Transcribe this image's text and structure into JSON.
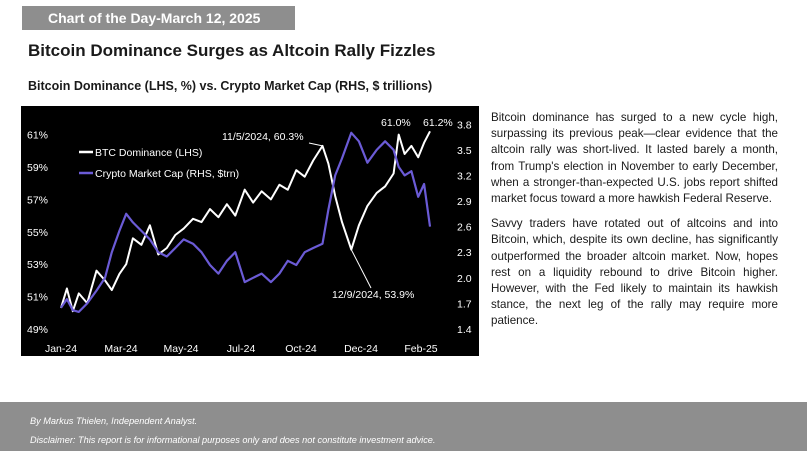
{
  "banner": "Chart of the Day-March 12, 2025",
  "headline": "Bitcoin Dominance Surges as Altcoin Rally Fizzles",
  "subhead": "Bitcoin Dominance (LHS, %) vs. Crypto Market Cap (RHS, $ trillions)",
  "paragraphs": [
    "Bitcoin dominance has surged to a new cycle high, surpassing its previous peak—clear evidence that the altcoin rally was short-lived. It lasted barely a month, from Trump's election in November to early December, when a stronger-than-expected U.S. jobs report shifted market focus toward a more hawkish Federal Reserve.",
    "Savvy traders have rotated out of altcoins and into Bitcoin, which, despite its own decline, has significantly outperformed the broader altcoin market. Now, hopes rest on a liquidity rebound to drive Bitcoin higher. However, with the Fed likely to maintain its hawkish stance, the next leg of the rally may require more patience."
  ],
  "footer": {
    "author": "By Markus Thielen, Independent Analyst.",
    "disclaimer": "Disclaimer: This report is for informational purposes only and does not constitute investment advice."
  },
  "chart_data": {
    "type": "line",
    "title": "Bitcoin Dominance (LHS, %) vs. Crypto Market Cap (RHS, $ trillions)",
    "x_tick_labels": [
      "Jan-24",
      "Mar-24",
      "May-24",
      "Jul-24",
      "Oct-24",
      "Dec-24",
      "Feb-25"
    ],
    "x_range": [
      "2024-01-01",
      "2025-03-12"
    ],
    "y_left": {
      "ticks": [
        "49%",
        "51%",
        "53%",
        "55%",
        "57%",
        "59%",
        "61%"
      ],
      "range": [
        49,
        61.9
      ]
    },
    "y_right": {
      "ticks": [
        "1.4",
        "1.7",
        "2.0",
        "2.3",
        "2.6",
        "2.9",
        "3.2",
        "3.5",
        "3.8"
      ],
      "range": [
        1.4,
        3.85
      ]
    },
    "legend": {
      "position": "top-left"
    },
    "grid": false,
    "colors": {
      "background": "#000000",
      "btc": "#ffffff",
      "mcap": "#6b5bd6",
      "axis_text": "#ffffff"
    },
    "series": [
      {
        "name": "BTC Dominance (LHS)",
        "axis": "left",
        "x": [
          "2024-01-01",
          "2024-01-08",
          "2024-01-15",
          "2024-01-22",
          "2024-02-01",
          "2024-02-12",
          "2024-02-22",
          "2024-03-01",
          "2024-03-10",
          "2024-03-18",
          "2024-03-26",
          "2024-04-05",
          "2024-04-15",
          "2024-04-25",
          "2024-05-05",
          "2024-05-15",
          "2024-05-25",
          "2024-06-05",
          "2024-06-15",
          "2024-06-25",
          "2024-07-05",
          "2024-07-15",
          "2024-07-25",
          "2024-08-05",
          "2024-08-15",
          "2024-08-25",
          "2024-09-05",
          "2024-09-15",
          "2024-09-25",
          "2024-10-05",
          "2024-10-15",
          "2024-10-25",
          "2024-11-05",
          "2024-11-12",
          "2024-11-20",
          "2024-11-28",
          "2024-12-09",
          "2024-12-18",
          "2024-12-28",
          "2025-01-08",
          "2025-01-18",
          "2025-01-28",
          "2025-02-03",
          "2025-02-10",
          "2025-02-18",
          "2025-02-26",
          "2025-03-05",
          "2025-03-12"
        ],
        "y": [
          50.3,
          51.5,
          50.1,
          51.2,
          50.6,
          52.6,
          52.0,
          51.4,
          52.4,
          53.0,
          54.6,
          54.2,
          55.4,
          53.6,
          54.0,
          54.8,
          55.2,
          55.8,
          55.6,
          56.4,
          55.9,
          56.7,
          56.0,
          57.6,
          56.8,
          57.5,
          57.0,
          57.9,
          57.6,
          58.8,
          58.4,
          59.4,
          60.3,
          59.2,
          57.2,
          55.6,
          53.9,
          55.4,
          56.6,
          57.4,
          57.8,
          58.6,
          61.0,
          59.8,
          60.3,
          59.6,
          60.5,
          61.2
        ]
      },
      {
        "name": "Crypto Market Cap (RHS, $trn)",
        "axis": "right",
        "x": [
          "2024-01-01",
          "2024-01-08",
          "2024-01-15",
          "2024-01-22",
          "2024-02-01",
          "2024-02-12",
          "2024-02-22",
          "2024-03-01",
          "2024-03-10",
          "2024-03-18",
          "2024-03-26",
          "2024-04-05",
          "2024-04-15",
          "2024-04-25",
          "2024-05-05",
          "2024-05-15",
          "2024-05-25",
          "2024-06-05",
          "2024-06-15",
          "2024-06-25",
          "2024-07-05",
          "2024-07-15",
          "2024-07-25",
          "2024-08-05",
          "2024-08-15",
          "2024-08-25",
          "2024-09-05",
          "2024-09-15",
          "2024-09-25",
          "2024-10-05",
          "2024-10-15",
          "2024-10-25",
          "2024-11-05",
          "2024-11-12",
          "2024-11-20",
          "2024-11-28",
          "2024-12-09",
          "2024-12-18",
          "2024-12-28",
          "2025-01-08",
          "2025-01-18",
          "2025-01-28",
          "2025-02-03",
          "2025-02-10",
          "2025-02-18",
          "2025-02-26",
          "2025-03-05",
          "2025-03-12"
        ],
        "y": [
          1.65,
          1.75,
          1.62,
          1.6,
          1.7,
          1.85,
          2.0,
          2.3,
          2.55,
          2.75,
          2.65,
          2.55,
          2.45,
          2.3,
          2.25,
          2.35,
          2.45,
          2.4,
          2.3,
          2.15,
          2.05,
          2.2,
          2.3,
          1.95,
          2.0,
          2.05,
          1.95,
          2.05,
          2.2,
          2.15,
          2.3,
          2.35,
          2.4,
          2.8,
          3.2,
          3.4,
          3.7,
          3.6,
          3.35,
          3.5,
          3.6,
          3.5,
          3.3,
          3.2,
          3.25,
          2.95,
          3.1,
          2.6
        ]
      }
    ],
    "annotations": [
      {
        "text": "11/5/2024, 60.3%",
        "x": "2024-11-05",
        "y": 60.3,
        "axis": "left"
      },
      {
        "text": "12/9/2024, 53.9%",
        "x": "2024-12-09",
        "y": 53.9,
        "axis": "left"
      },
      {
        "text": "61.0%",
        "x": "2025-02-03",
        "y": 61.0,
        "axis": "left"
      },
      {
        "text": "61.2%",
        "x": "2025-03-12",
        "y": 61.2,
        "axis": "left"
      }
    ]
  }
}
